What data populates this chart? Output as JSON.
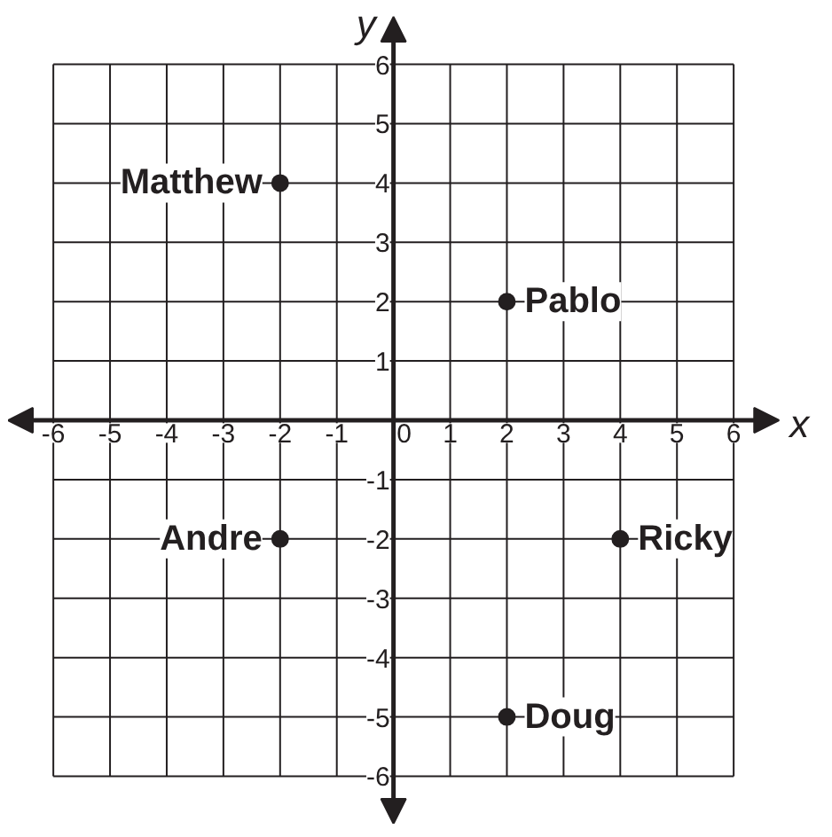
{
  "chart_data": {
    "type": "scatter",
    "xlabel": "x",
    "ylabel": "y",
    "xlim": [
      -6.8,
      6.8
    ],
    "ylim": [
      -6.8,
      6.8
    ],
    "xticks": [
      -6,
      -5,
      -4,
      -3,
      -2,
      -1,
      0,
      1,
      2,
      3,
      4,
      5,
      6
    ],
    "yticks": [
      -6,
      -5,
      -4,
      -3,
      -2,
      -1,
      1,
      2,
      3,
      4,
      5,
      6
    ],
    "grid": true,
    "marker": "circle",
    "series": [
      {
        "color": "#231f20",
        "x": [
          -2,
          2,
          -2,
          4,
          2
        ],
        "values": [
          4,
          2,
          -2,
          -2,
          -5
        ]
      }
    ],
    "annotations": [
      {
        "text": "Matthew",
        "x": -2,
        "y": 4
      },
      {
        "text": "Pablo",
        "x": 2,
        "y": 2
      },
      {
        "text": "Andre",
        "x": -2,
        "y": -2
      },
      {
        "text": "Ricky",
        "x": 4,
        "y": -2
      },
      {
        "text": "Doug",
        "x": 2,
        "y": -5
      }
    ]
  }
}
